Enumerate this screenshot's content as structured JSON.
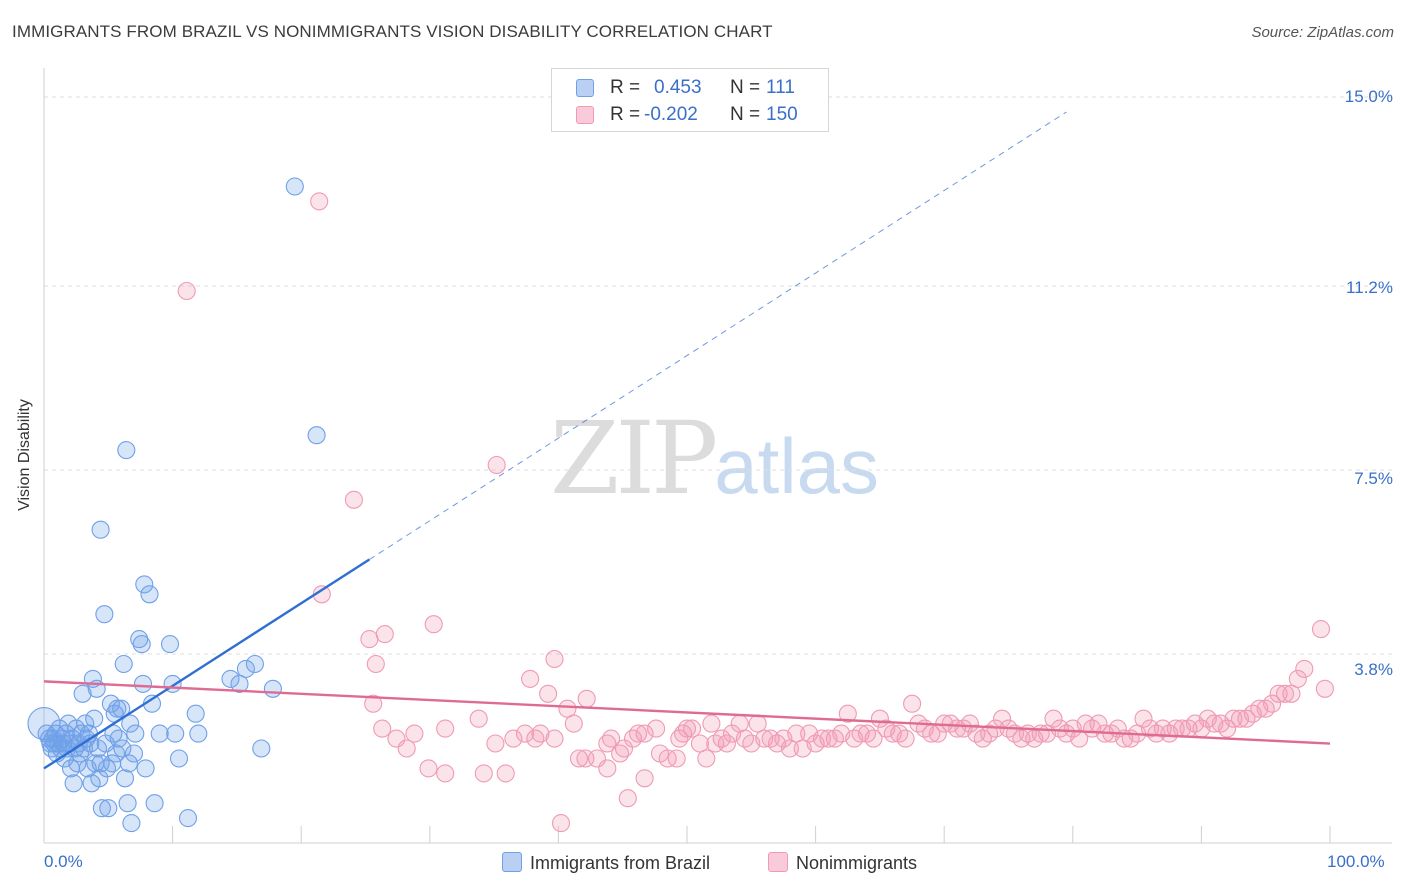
{
  "header": {
    "title": "IMMIGRANTS FROM BRAZIL VS NONIMMIGRANTS VISION DISABILITY CORRELATION CHART",
    "source": "Source: ZipAtlas.com"
  },
  "watermark": {
    "zip": "ZIP",
    "atlas": "atlas"
  },
  "legend": {
    "series1": {
      "r_label": "R =",
      "r_value": "0.453",
      "n_label": "N =",
      "n_value": "111"
    },
    "series2": {
      "r_label": "R =",
      "r_value": "-0.202",
      "n_label": "N =",
      "n_value": "150"
    }
  },
  "colors": {
    "blue": "#6fa0e8",
    "blue_line": "#2f6fd1",
    "pink": "#f09ab5",
    "pink_line": "#e06b92",
    "tick_text": "#3a6fc9"
  },
  "chart_data": {
    "type": "scatter",
    "title": "IMMIGRANTS FROM BRAZIL VS NONIMMIGRANTS VISION DISABILITY CORRELATION CHART",
    "xlabel": "",
    "ylabel": "Vision Disability",
    "xlim": [
      0,
      100
    ],
    "ylim": [
      0,
      15.5
    ],
    "x_ticks": [
      {
        "value": 0,
        "label": "0.0%"
      },
      {
        "value": 100,
        "label": "100.0%"
      }
    ],
    "y_ticks": [
      {
        "value": 3.8,
        "label": "3.8%"
      },
      {
        "value": 7.5,
        "label": "7.5%"
      },
      {
        "value": 11.2,
        "label": "11.2%"
      },
      {
        "value": 15.0,
        "label": "15.0%"
      }
    ],
    "grid": true,
    "legend_position": "top-center",
    "series": [
      {
        "name": "Immigrants from Brazil",
        "color": "#6fa0e8",
        "trend": {
          "x0": 0,
          "y0": 1.5,
          "x1": 25.3,
          "y1": 5.7,
          "dashed_to_x": 79.5
        },
        "points": [
          [
            0.2,
            2.2
          ],
          [
            0.4,
            2.1
          ],
          [
            0.5,
            2.0
          ],
          [
            0.6,
            1.9
          ],
          [
            0.7,
            2.1
          ],
          [
            0.8,
            2.0
          ],
          [
            0.9,
            2.2
          ],
          [
            1.0,
            1.8
          ],
          [
            1.1,
            2.0
          ],
          [
            1.2,
            2.3
          ],
          [
            1.3,
            1.9
          ],
          [
            1.4,
            2.1
          ],
          [
            1.5,
            2.0
          ],
          [
            1.6,
            1.7
          ],
          [
            1.7,
            2.2
          ],
          [
            1.8,
            1.9
          ],
          [
            1.9,
            2.4
          ],
          [
            2.0,
            2.0
          ],
          [
            2.1,
            1.5
          ],
          [
            2.2,
            2.1
          ],
          [
            2.3,
            1.2
          ],
          [
            2.4,
            1.9
          ],
          [
            2.5,
            2.3
          ],
          [
            2.6,
            1.6
          ],
          [
            2.7,
            2.0
          ],
          [
            2.8,
            1.8
          ],
          [
            2.9,
            2.2
          ],
          [
            3.0,
            3.0
          ],
          [
            3.1,
            1.9
          ],
          [
            3.2,
            2.4
          ],
          [
            3.3,
            2.1
          ],
          [
            3.4,
            1.5
          ],
          [
            3.5,
            2.2
          ],
          [
            3.6,
            2.0
          ],
          [
            3.7,
            1.2
          ],
          [
            3.8,
            3.3
          ],
          [
            3.9,
            2.5
          ],
          [
            4.0,
            1.6
          ],
          [
            4.1,
            3.1
          ],
          [
            4.2,
            1.9
          ],
          [
            4.3,
            1.3
          ],
          [
            4.4,
            1.6
          ],
          [
            4.5,
            0.7
          ],
          [
            4.7,
            4.6
          ],
          [
            4.8,
            2.0
          ],
          [
            4.9,
            1.5
          ],
          [
            5.0,
            0.7
          ],
          [
            5.2,
            2.8
          ],
          [
            5.3,
            1.6
          ],
          [
            5.4,
            2.2
          ],
          [
            5.5,
            2.6
          ],
          [
            5.6,
            1.8
          ],
          [
            5.7,
            2.7
          ],
          [
            5.8,
            2.1
          ],
          [
            6.0,
            2.7
          ],
          [
            6.1,
            1.9
          ],
          [
            6.2,
            3.6
          ],
          [
            6.3,
            1.3
          ],
          [
            6.5,
            0.8
          ],
          [
            6.6,
            1.6
          ],
          [
            6.7,
            2.4
          ],
          [
            6.8,
            0.4
          ],
          [
            7.0,
            1.8
          ],
          [
            7.1,
            2.2
          ],
          [
            7.4,
            4.1
          ],
          [
            7.6,
            4.0
          ],
          [
            7.7,
            3.2
          ],
          [
            7.8,
            5.2
          ],
          [
            7.9,
            1.5
          ],
          [
            8.2,
            5.0
          ],
          [
            8.4,
            2.8
          ],
          [
            8.6,
            0.8
          ],
          [
            9.0,
            2.2
          ],
          [
            9.8,
            4.0
          ],
          [
            10.0,
            3.2
          ],
          [
            10.2,
            2.2
          ],
          [
            10.5,
            1.7
          ],
          [
            11.2,
            0.5
          ],
          [
            11.8,
            2.6
          ],
          [
            12.0,
            2.2
          ],
          [
            14.5,
            3.3
          ],
          [
            15.2,
            3.2
          ],
          [
            15.7,
            3.5
          ],
          [
            16.4,
            3.6
          ],
          [
            16.9,
            1.9
          ],
          [
            17.8,
            3.1
          ],
          [
            19.5,
            13.2
          ],
          [
            21.2,
            8.2
          ],
          [
            6.4,
            7.9
          ],
          [
            4.4,
            6.3
          ]
        ]
      },
      {
        "name": "Nonimmigrants",
        "color": "#f09ab5",
        "trend": {
          "x0": 0,
          "y0": 3.25,
          "x1": 100,
          "y1": 2.0
        },
        "points": [
          [
            11.1,
            11.1
          ],
          [
            21.4,
            12.9
          ],
          [
            35.2,
            7.6
          ],
          [
            24.1,
            6.9
          ],
          [
            21.6,
            5.0
          ],
          [
            30.3,
            4.4
          ],
          [
            25.3,
            4.1
          ],
          [
            26.5,
            4.2
          ],
          [
            25.8,
            3.6
          ],
          [
            39.7,
            3.7
          ],
          [
            37.8,
            3.3
          ],
          [
            39.2,
            3.0
          ],
          [
            42.2,
            2.9
          ],
          [
            33.8,
            2.5
          ],
          [
            36.5,
            2.1
          ],
          [
            25.6,
            2.8
          ],
          [
            26.3,
            2.3
          ],
          [
            28.2,
            1.9
          ],
          [
            28.8,
            2.2
          ],
          [
            27.4,
            2.1
          ],
          [
            31.2,
            2.3
          ],
          [
            29.9,
            1.5
          ],
          [
            31.2,
            1.4
          ],
          [
            34.2,
            1.4
          ],
          [
            35.9,
            1.4
          ],
          [
            35.1,
            2.0
          ],
          [
            37.4,
            2.2
          ],
          [
            38.2,
            2.1
          ],
          [
            38.6,
            2.2
          ],
          [
            39.7,
            2.1
          ],
          [
            40.7,
            2.7
          ],
          [
            41.2,
            2.4
          ],
          [
            41.6,
            1.7
          ],
          [
            42.1,
            1.7
          ],
          [
            43.8,
            2.0
          ],
          [
            44.1,
            2.1
          ],
          [
            45.1,
            1.9
          ],
          [
            45.4,
            0.9
          ],
          [
            45.8,
            2.1
          ],
          [
            46.2,
            2.2
          ],
          [
            46.7,
            2.2
          ],
          [
            46.7,
            1.3
          ],
          [
            47.9,
            1.8
          ],
          [
            48.5,
            1.7
          ],
          [
            49.2,
            1.7
          ],
          [
            49.4,
            2.1
          ],
          [
            49.7,
            2.2
          ],
          [
            50.0,
            2.3
          ],
          [
            50.4,
            2.3
          ],
          [
            51.0,
            2.0
          ],
          [
            51.5,
            1.7
          ],
          [
            51.9,
            2.4
          ],
          [
            52.2,
            2.0
          ],
          [
            52.7,
            2.1
          ],
          [
            53.1,
            2.0
          ],
          [
            53.5,
            2.2
          ],
          [
            54.1,
            2.4
          ],
          [
            54.5,
            2.1
          ],
          [
            55.0,
            2.0
          ],
          [
            55.5,
            2.4
          ],
          [
            56.0,
            2.1
          ],
          [
            56.5,
            2.1
          ],
          [
            57.0,
            2.0
          ],
          [
            57.5,
            2.1
          ],
          [
            58.0,
            1.9
          ],
          [
            58.5,
            2.2
          ],
          [
            59.0,
            1.9
          ],
          [
            59.5,
            2.2
          ],
          [
            60.0,
            2.0
          ],
          [
            60.5,
            2.1
          ],
          [
            61.0,
            2.1
          ],
          [
            61.5,
            2.1
          ],
          [
            62.0,
            2.2
          ],
          [
            62.5,
            2.6
          ],
          [
            63.0,
            2.1
          ],
          [
            63.5,
            2.2
          ],
          [
            64.0,
            2.2
          ],
          [
            64.5,
            2.1
          ],
          [
            65.0,
            2.5
          ],
          [
            65.5,
            2.3
          ],
          [
            66.0,
            2.2
          ],
          [
            66.5,
            2.2
          ],
          [
            67.0,
            2.1
          ],
          [
            67.5,
            2.8
          ],
          [
            68.0,
            2.4
          ],
          [
            68.5,
            2.3
          ],
          [
            69.0,
            2.2
          ],
          [
            69.5,
            2.2
          ],
          [
            70.0,
            2.4
          ],
          [
            70.5,
            2.4
          ],
          [
            71.0,
            2.3
          ],
          [
            71.5,
            2.3
          ],
          [
            72.0,
            2.4
          ],
          [
            72.5,
            2.2
          ],
          [
            73.0,
            2.1
          ],
          [
            73.5,
            2.2
          ],
          [
            74.0,
            2.3
          ],
          [
            74.5,
            2.5
          ],
          [
            75.0,
            2.3
          ],
          [
            75.5,
            2.2
          ],
          [
            76.0,
            2.1
          ],
          [
            76.5,
            2.2
          ],
          [
            77.0,
            2.1
          ],
          [
            77.5,
            2.2
          ],
          [
            78.0,
            2.2
          ],
          [
            78.5,
            2.5
          ],
          [
            79.0,
            2.3
          ],
          [
            79.5,
            2.2
          ],
          [
            80.0,
            2.3
          ],
          [
            80.5,
            2.1
          ],
          [
            81.0,
            2.4
          ],
          [
            81.5,
            2.3
          ],
          [
            82.0,
            2.4
          ],
          [
            82.5,
            2.2
          ],
          [
            83.0,
            2.2
          ],
          [
            83.5,
            2.3
          ],
          [
            84.0,
            2.1
          ],
          [
            84.5,
            2.1
          ],
          [
            85.0,
            2.2
          ],
          [
            85.5,
            2.5
          ],
          [
            86.0,
            2.3
          ],
          [
            86.5,
            2.2
          ],
          [
            87.0,
            2.3
          ],
          [
            87.5,
            2.2
          ],
          [
            88.0,
            2.3
          ],
          [
            88.5,
            2.3
          ],
          [
            89.0,
            2.3
          ],
          [
            89.5,
            2.4
          ],
          [
            90.0,
            2.3
          ],
          [
            90.5,
            2.5
          ],
          [
            91.0,
            2.4
          ],
          [
            91.5,
            2.4
          ],
          [
            92.0,
            2.3
          ],
          [
            92.5,
            2.5
          ],
          [
            93.0,
            2.5
          ],
          [
            93.5,
            2.5
          ],
          [
            94.0,
            2.6
          ],
          [
            94.5,
            2.7
          ],
          [
            95.0,
            2.7
          ],
          [
            95.5,
            2.8
          ],
          [
            96.0,
            3.0
          ],
          [
            96.5,
            3.0
          ],
          [
            97.0,
            3.0
          ],
          [
            97.5,
            3.3
          ],
          [
            98.0,
            3.5
          ],
          [
            99.3,
            4.3
          ],
          [
            99.6,
            3.1
          ],
          [
            43.8,
            1.5
          ],
          [
            44.8,
            1.8
          ],
          [
            47.6,
            2.3
          ],
          [
            43.0,
            1.7
          ],
          [
            40.2,
            0.4
          ]
        ]
      }
    ]
  },
  "bottom_legend": {
    "series1": "Immigrants from Brazil",
    "series2": "Nonimmigrants"
  }
}
